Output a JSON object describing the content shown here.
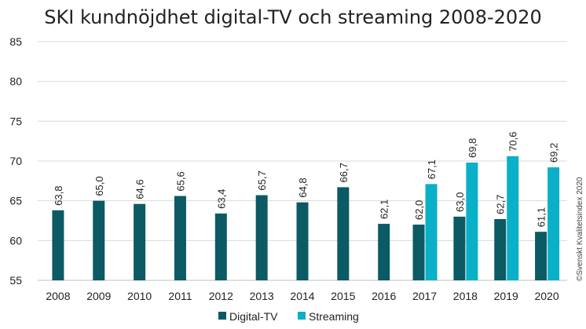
{
  "chart_data": {
    "type": "bar",
    "title": "SKI kundnöjdhet digital-TV och streaming 2008-2020",
    "categories": [
      "2008",
      "2009",
      "2010",
      "2011",
      "2012",
      "2013",
      "2014",
      "2015",
      "2016",
      "2017",
      "2018",
      "2019",
      "2020"
    ],
    "series": [
      {
        "name": "Digital-TV",
        "color": "#0b5a64",
        "values": [
          63.8,
          65.0,
          64.6,
          65.6,
          63.4,
          65.7,
          64.8,
          66.7,
          62.1,
          62.0,
          63.0,
          62.7,
          61.1
        ],
        "labels": [
          "63,8",
          "65,0",
          "64,6",
          "65,6",
          "63,4",
          "65,7",
          "64,8",
          "66,7",
          "62,1",
          "62,0",
          "63,0",
          "62,7",
          "61,1"
        ]
      },
      {
        "name": "Streaming",
        "color": "#0ab0c8",
        "values": [
          null,
          null,
          null,
          null,
          null,
          null,
          null,
          null,
          null,
          67.1,
          69.8,
          70.6,
          69.2
        ],
        "labels": [
          null,
          null,
          null,
          null,
          null,
          null,
          null,
          null,
          null,
          "67,1",
          "69,8",
          "70,6",
          "69,2"
        ]
      }
    ],
    "yticks": [
      "55",
      "60",
      "65",
      "70",
      "75",
      "80",
      "85"
    ],
    "ylim": [
      55,
      85
    ],
    "xlabel": "",
    "ylabel": "",
    "legend": "bottom-center",
    "grid": true
  },
  "copyright": "©Svenskt Kvalitetsindex 2020"
}
